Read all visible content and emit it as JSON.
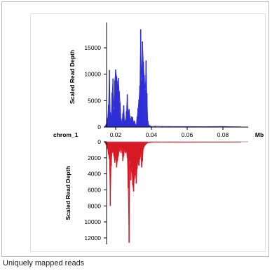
{
  "caption": "Uniquely mapped reads",
  "colors": {
    "top_series": "#2f2fd6",
    "bottom_series": "#d81a26",
    "axis": "#000000"
  },
  "chart_data": [
    {
      "type": "area",
      "chromosome_label": "chrom_1",
      "ylabel": "Scaled Read Depth",
      "yticks": [
        0,
        5000,
        10000,
        15000
      ],
      "ylim": [
        0,
        19000
      ],
      "xlim": [
        0,
        0.1
      ],
      "xticks": [
        "0.02",
        "0.04",
        "0.06",
        "0.08"
      ],
      "xtick_values": [
        0.02,
        0.04,
        0.06,
        0.08
      ],
      "xunit": "Mb",
      "grid": false,
      "series": [
        {
          "x": [
            0.014,
            0.0145,
            0.015,
            0.0155,
            0.016,
            0.0165,
            0.017,
            0.0175,
            0.018,
            0.0185,
            0.019,
            0.0195,
            0.02,
            0.0205,
            0.021,
            0.0215,
            0.022,
            0.0225,
            0.023,
            0.0235,
            0.024,
            0.0245,
            0.025,
            0.0255,
            0.026,
            0.0265,
            0.027,
            0.0275,
            0.028,
            0.0285,
            0.029,
            0.0295,
            0.03,
            0.0305,
            0.031,
            0.0315,
            0.032,
            0.0325,
            0.033,
            0.0335,
            0.034,
            0.0345,
            0.035,
            0.0355,
            0.036,
            0.0365,
            0.037,
            0.0375,
            0.038,
            0.0385,
            0.039,
            0.0395,
            0.04,
            0.042,
            0.046,
            0.05,
            0.056,
            0.062,
            0.068,
            0.074,
            0.08,
            0.086,
            0.09
          ],
          "values": [
            150,
            400,
            900,
            1800,
            4200,
            10800,
            2800,
            2200,
            6500,
            9200,
            3400,
            8800,
            10900,
            9600,
            8200,
            9300,
            6800,
            4600,
            1600,
            900,
            2600,
            4100,
            1400,
            1100,
            3000,
            6200,
            2800,
            3400,
            2100,
            1400,
            2000,
            1800,
            900,
            1200,
            600,
            400,
            2000,
            3600,
            5200,
            7800,
            18500,
            8800,
            16200,
            12400,
            9800,
            7000,
            12600,
            6400,
            1200,
            400,
            300,
            200,
            150,
            200,
            150,
            120,
            100,
            110,
            90,
            100,
            120,
            80,
            60
          ]
        }
      ]
    },
    {
      "type": "area",
      "ylabel": "Scaled Read Depth",
      "yticks": [
        0,
        2000,
        4000,
        6000,
        8000,
        10000,
        12000
      ],
      "ylim": [
        0,
        12800
      ],
      "xlim": [
        0,
        0.1
      ],
      "inverted": true,
      "grid": false,
      "series": [
        {
          "x": [
            0.014,
            0.0145,
            0.015,
            0.0155,
            0.016,
            0.0165,
            0.017,
            0.0175,
            0.018,
            0.0185,
            0.019,
            0.0195,
            0.02,
            0.0205,
            0.021,
            0.0215,
            0.022,
            0.0225,
            0.023,
            0.0235,
            0.024,
            0.0245,
            0.025,
            0.0255,
            0.026,
            0.0265,
            0.027,
            0.0275,
            0.028,
            0.0285,
            0.029,
            0.0295,
            0.03,
            0.0305,
            0.031,
            0.0315,
            0.032,
            0.0325,
            0.033,
            0.0335,
            0.034,
            0.0345,
            0.035,
            0.0355,
            0.036,
            0.0365,
            0.037,
            0.0375,
            0.038,
            0.039,
            0.04,
            0.044,
            0.05,
            0.06,
            0.07,
            0.08,
            0.09
          ],
          "values": [
            100,
            300,
            500,
            900,
            1600,
            2200,
            8000,
            3000,
            1400,
            1200,
            1800,
            2600,
            2000,
            3200,
            2400,
            1800,
            1200,
            900,
            1400,
            800,
            2400,
            1800,
            1000,
            1400,
            1200,
            2000,
            5800,
            12600,
            2400,
            4800,
            3200,
            5400,
            6200,
            4600,
            3800,
            5200,
            3400,
            2600,
            3000,
            2200,
            1600,
            3200,
            2400,
            900,
            600,
            400,
            300,
            200,
            150,
            120,
            100,
            90,
            80,
            70,
            60,
            60,
            50
          ]
        }
      ]
    }
  ]
}
